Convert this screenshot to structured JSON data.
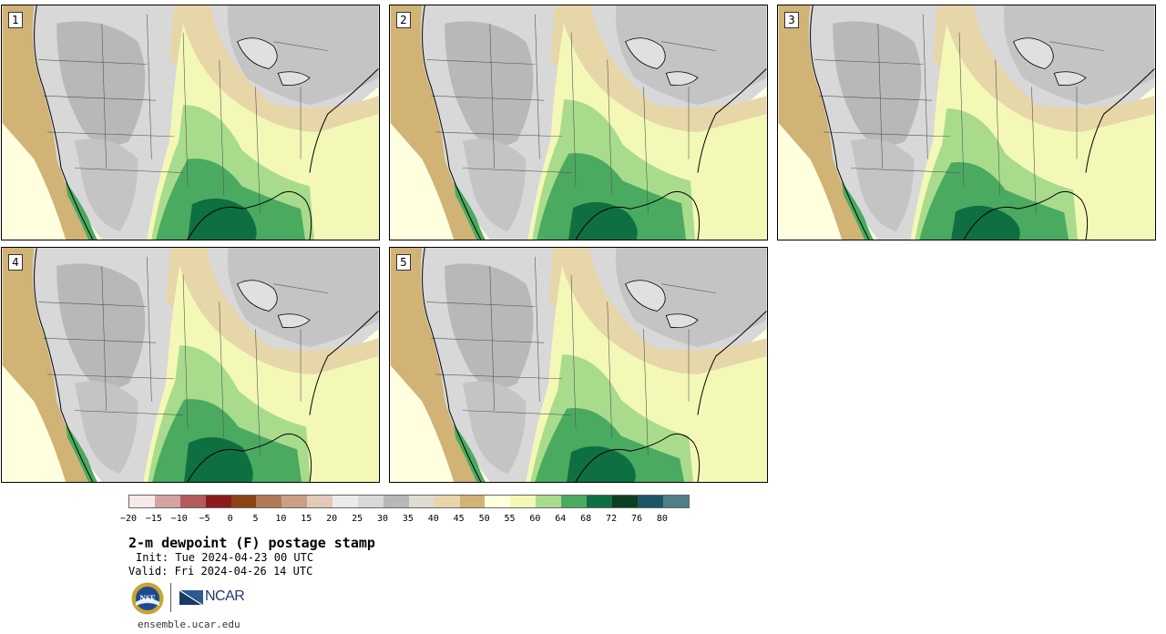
{
  "panels": [
    {
      "number": "1",
      "variant": 0
    },
    {
      "number": "2",
      "variant": 1
    },
    {
      "number": "3",
      "variant": 2
    },
    {
      "number": "4",
      "variant": 3
    },
    {
      "number": "5",
      "variant": 4
    }
  ],
  "colorbar": {
    "colors": [
      "#f5e9e9",
      "#d4a3a3",
      "#b25c5c",
      "#8c1c1c",
      "#8b4513",
      "#b07a58",
      "#c9a085",
      "#e2c9b8",
      "#ebebeb",
      "#d8d8d8",
      "#b8b8b8",
      "#dedbd0",
      "#e6d6a8",
      "#d0b375",
      "#ffffe0",
      "#f4f8b6",
      "#a8dc8c",
      "#4aaa60",
      "#0e7040",
      "#0b3e22",
      "#1d5565",
      "#4f7e84"
    ],
    "ticks": [
      "−20",
      "−15",
      "−10",
      "−5",
      "0",
      "5",
      "10",
      "15",
      "20",
      "25",
      "30",
      "35",
      "40",
      "45",
      "50",
      "55",
      "60",
      "64",
      "68",
      "72",
      "76",
      "80"
    ]
  },
  "title": "2-m dewpoint (F) postage stamp",
  "init_label": "Init: Tue 2024-04-23 00 UTC",
  "valid_label": "Valid: Fri 2024-04-26 14 UTC",
  "logos": {
    "nsf": "NSF",
    "ncar": "NCAR"
  },
  "url": "ensemble.ucar.edu"
}
